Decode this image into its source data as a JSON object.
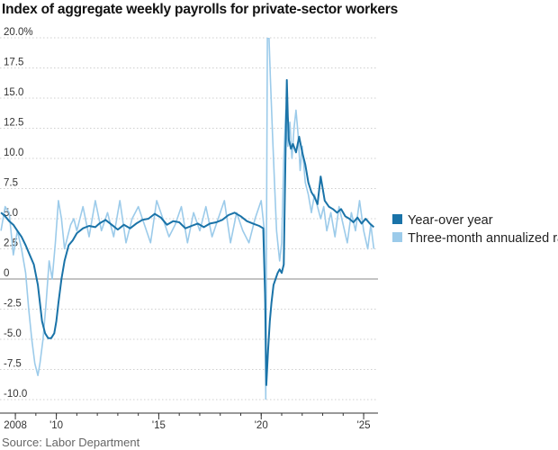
{
  "title": "Index of aggregate weekly payrolls for private-sector workers",
  "source": "Source: Labor Department",
  "colors": {
    "yoy": "#1a73a8",
    "three_month": "#9ccbea",
    "zero_line": "#888888",
    "grid": "#cfcfcf"
  },
  "chart_data": {
    "type": "line",
    "title": "Index of aggregate weekly payrolls for private-sector workers",
    "xlabel": "",
    "ylabel": "",
    "xlim": [
      2007.25,
      2025.7
    ],
    "ylim": [
      -10,
      20
    ],
    "y_ticks": [
      20,
      17.5,
      15,
      12.5,
      10,
      7.5,
      5,
      2.5,
      0,
      -2.5,
      -5,
      -7.5,
      -10
    ],
    "y_tick_labels": [
      "20.0%",
      "17.5",
      "15.0",
      "12.5",
      "10.0",
      "7.5",
      "5.0",
      "2.5",
      "0",
      "-2.5",
      "-5.0",
      "-7.5",
      "-10.0"
    ],
    "x_ticks": [
      2008,
      2010,
      2015,
      2020,
      2025
    ],
    "x_tick_labels": [
      "2008",
      "'10",
      "'15",
      "'20",
      "'25"
    ],
    "grid": "horizontal",
    "legend_position": "right",
    "series": [
      {
        "name": "Year-over year",
        "key": "yoy",
        "x": [
          2007.3,
          2007.5,
          2007.7,
          2007.9,
          2008.1,
          2008.3,
          2008.5,
          2008.7,
          2008.9,
          2009.1,
          2009.2,
          2009.3,
          2009.45,
          2009.6,
          2009.75,
          2009.9,
          2010.0,
          2010.1,
          2010.25,
          2010.4,
          2010.6,
          2010.8,
          2011.0,
          2011.3,
          2011.6,
          2011.9,
          2012.1,
          2012.4,
          2012.7,
          2013.0,
          2013.3,
          2013.6,
          2013.9,
          2014.2,
          2014.5,
          2014.8,
          2015.1,
          2015.4,
          2015.7,
          2016.0,
          2016.3,
          2016.6,
          2016.9,
          2017.2,
          2017.5,
          2017.8,
          2018.1,
          2018.4,
          2018.7,
          2019.0,
          2019.3,
          2019.6,
          2019.9,
          2020.1,
          2020.2,
          2020.25,
          2020.33,
          2020.42,
          2020.5,
          2020.6,
          2020.7,
          2020.8,
          2020.9,
          2021.0,
          2021.1,
          2021.2,
          2021.25,
          2021.3,
          2021.35,
          2021.45,
          2021.55,
          2021.7,
          2021.85,
          2022.0,
          2022.15,
          2022.3,
          2022.45,
          2022.6,
          2022.75,
          2022.9,
          2023.1,
          2023.3,
          2023.5,
          2023.7,
          2023.9,
          2024.1,
          2024.3,
          2024.5,
          2024.7,
          2024.9,
          2025.1,
          2025.3,
          2025.5
        ],
        "values": [
          5.5,
          5.2,
          4.8,
          4.5,
          4.0,
          3.5,
          2.8,
          2.0,
          1.2,
          -0.5,
          -2.0,
          -3.5,
          -4.5,
          -4.9,
          -4.9,
          -4.5,
          -3.5,
          -2.0,
          0.0,
          1.5,
          2.8,
          3.2,
          3.8,
          4.2,
          4.4,
          4.3,
          4.6,
          4.9,
          4.5,
          4.1,
          4.5,
          4.2,
          4.6,
          4.9,
          5.0,
          5.4,
          5.1,
          4.5,
          4.8,
          4.7,
          4.2,
          4.4,
          4.6,
          4.3,
          4.6,
          4.7,
          4.9,
          5.3,
          5.5,
          5.2,
          4.8,
          4.6,
          4.4,
          4.2,
          -2.0,
          -8.8,
          -6.0,
          -3.5,
          -2.0,
          -0.5,
          0.0,
          0.5,
          0.8,
          0.5,
          1.2,
          12.0,
          16.5,
          13.5,
          11.5,
          10.8,
          11.2,
          10.5,
          11.8,
          10.5,
          9.5,
          8.0,
          7.2,
          6.8,
          6.2,
          8.5,
          6.5,
          6.0,
          5.8,
          5.5,
          5.8,
          5.2,
          5.0,
          4.7,
          5.1,
          4.6,
          5.0,
          4.6,
          4.3
        ]
      },
      {
        "name": "Three-month annualized rate",
        "key": "three_month",
        "x": [
          2007.3,
          2007.5,
          2007.7,
          2007.9,
          2008.1,
          2008.3,
          2008.5,
          2008.65,
          2008.8,
          2008.95,
          2009.1,
          2009.2,
          2009.35,
          2009.5,
          2009.65,
          2009.8,
          2009.95,
          2010.1,
          2010.25,
          2010.4,
          2010.55,
          2010.7,
          2010.85,
          2011.0,
          2011.3,
          2011.6,
          2011.9,
          2012.2,
          2012.5,
          2012.8,
          2013.1,
          2013.4,
          2013.7,
          2014.0,
          2014.3,
          2014.6,
          2014.9,
          2015.2,
          2015.5,
          2015.8,
          2016.1,
          2016.4,
          2016.7,
          2017.0,
          2017.3,
          2017.6,
          2017.9,
          2018.2,
          2018.5,
          2018.8,
          2019.1,
          2019.4,
          2019.7,
          2020.0,
          2020.15,
          2020.22,
          2020.3,
          2020.38,
          2020.45,
          2020.55,
          2020.65,
          2020.75,
          2020.9,
          2021.0,
          2021.1,
          2021.2,
          2021.3,
          2021.4,
          2021.5,
          2021.6,
          2021.7,
          2021.8,
          2021.9,
          2022.0,
          2022.15,
          2022.3,
          2022.45,
          2022.6,
          2022.75,
          2022.9,
          2023.05,
          2023.2,
          2023.4,
          2023.6,
          2023.8,
          2024.0,
          2024.2,
          2024.4,
          2024.6,
          2024.8,
          2025.0,
          2025.2,
          2025.35,
          2025.5
        ],
        "values": [
          4.0,
          6.0,
          5.5,
          2.0,
          4.0,
          2.5,
          0.5,
          -2.5,
          -5.0,
          -7.0,
          -8.0,
          -7.0,
          -5.0,
          -2.0,
          1.5,
          0.0,
          3.0,
          6.5,
          5.0,
          2.5,
          3.5,
          4.5,
          5.0,
          4.0,
          6.0,
          3.5,
          6.5,
          4.0,
          5.5,
          3.5,
          6.5,
          3.0,
          5.0,
          6.0,
          4.5,
          3.0,
          6.5,
          5.0,
          3.5,
          4.5,
          6.0,
          3.0,
          5.5,
          4.0,
          6.0,
          3.5,
          5.0,
          6.5,
          3.0,
          5.5,
          4.0,
          3.0,
          5.0,
          6.5,
          4.0,
          -10.0,
          20.0,
          20.0,
          16.5,
          12.0,
          8.0,
          4.0,
          1.5,
          3.0,
          10.0,
          14.0,
          11.0,
          13.0,
          10.0,
          12.5,
          14.0,
          12.0,
          9.0,
          11.0,
          8.0,
          7.0,
          5.5,
          7.0,
          6.0,
          5.0,
          6.0,
          4.0,
          5.5,
          3.5,
          6.0,
          4.5,
          3.0,
          5.5,
          4.0,
          6.5,
          4.0,
          2.5,
          4.5,
          2.5
        ]
      }
    ]
  }
}
